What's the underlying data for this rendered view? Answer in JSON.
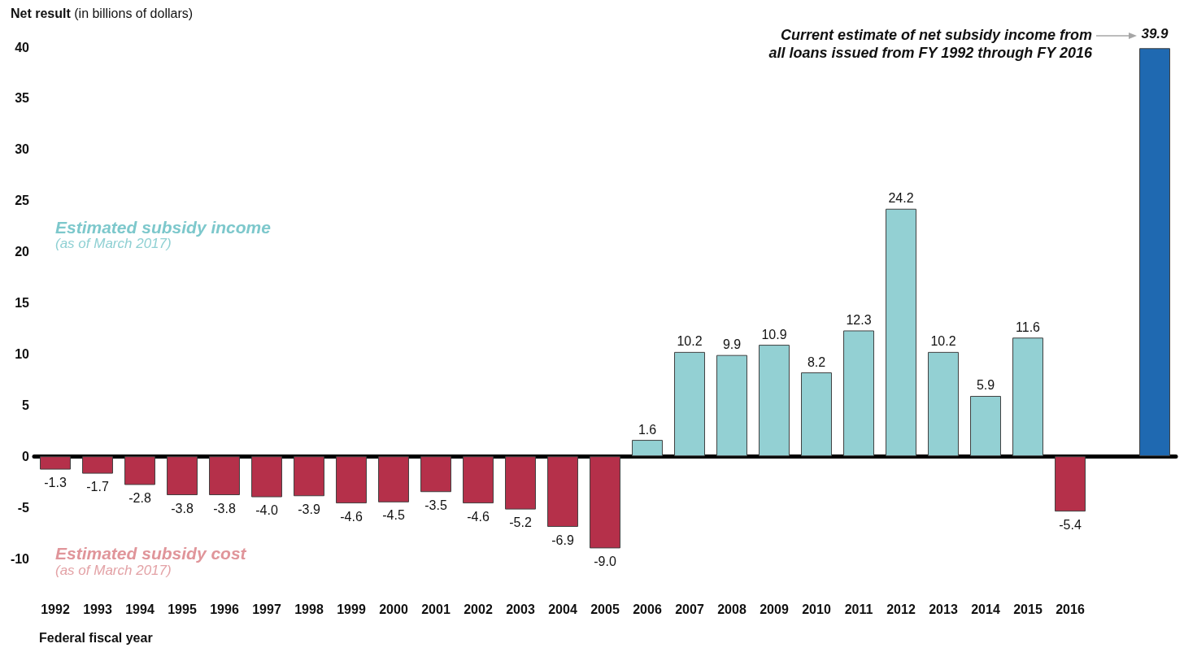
{
  "chart_data": {
    "type": "bar",
    "ylabel": "Net result (in billions of dollars)",
    "xlabel": "Federal fiscal year",
    "annotations": [
      "Estimated subsidy income",
      "(as of March 2017)",
      "Estimated subsidy cost",
      "(as of March 2017)",
      "Current estimate of net subsidy income from all loans issued from FY 1992 through FY 2016"
    ],
    "categories": [
      "1992",
      "1993",
      "1994",
      "1995",
      "1996",
      "1997",
      "1998",
      "1999",
      "2000",
      "2001",
      "2002",
      "2003",
      "2004",
      "2005",
      "2006",
      "2007",
      "2008",
      "2009",
      "2010",
      "2011",
      "2012",
      "2013",
      "2014",
      "2015",
      "2016",
      null,
      null
    ],
    "series": [
      {
        "colors": [
          "#b5304a",
          "#b5304a",
          "#b5304a",
          "#b5304a",
          "#b5304a",
          "#b5304a",
          "#b5304a",
          "#b5304a",
          "#b5304a",
          "#b5304a",
          "#b5304a",
          "#b5304a",
          "#b5304a",
          "#b5304a",
          "#93d0d3",
          "#93d0d3",
          "#93d0d3",
          "#93d0d3",
          "#93d0d3",
          "#93d0d3",
          "#93d0d3",
          "#93d0d3",
          "#93d0d3",
          "#93d0d3",
          "#b5304a",
          null,
          null
        ],
        "values": [
          -1.3,
          -1.7,
          -2.8,
          -3.8,
          -3.8,
          -4.0,
          -3.9,
          -4.6,
          -4.5,
          -3.5,
          -4.6,
          -5.2,
          -6.9,
          -9.0,
          1.6,
          10.2,
          9.9,
          10.9,
          8.2,
          12.3,
          24.2,
          10.2,
          5.9,
          11.6,
          -5.4,
          null,
          null
        ],
        "value_labels": [
          "-1.3",
          "-1.7",
          "-2.8",
          "-3.8",
          "-3.8",
          "-4.0",
          "-3.9",
          "-4.6",
          "-4.5",
          "-3.5",
          "-4.6",
          "-5.2",
          "-6.9",
          "-9.0",
          "1.6",
          "10.2",
          "9.9",
          "10.9",
          "8.2",
          "12.3",
          "24.2",
          "10.2",
          "5.9",
          "11.6",
          "-5.4",
          null,
          null
        ]
      },
      {
        "color": "#1f69b1",
        "values": [
          null,
          null,
          null,
          null,
          null,
          null,
          null,
          null,
          null,
          null,
          null,
          null,
          null,
          null,
          null,
          null,
          null,
          null,
          null,
          null,
          null,
          null,
          null,
          null,
          null,
          null,
          39.9
        ],
        "value_labels": [
          null,
          null,
          null,
          null,
          null,
          null,
          null,
          null,
          null,
          null,
          null,
          null,
          null,
          null,
          null,
          null,
          null,
          null,
          null,
          null,
          null,
          null,
          null,
          null,
          null,
          null,
          "39.9"
        ]
      }
    ],
    "ylim": [
      -10,
      40
    ],
    "yticks": [
      -10,
      -5,
      0,
      5,
      10,
      15,
      20,
      25,
      30,
      35,
      40
    ]
  }
}
